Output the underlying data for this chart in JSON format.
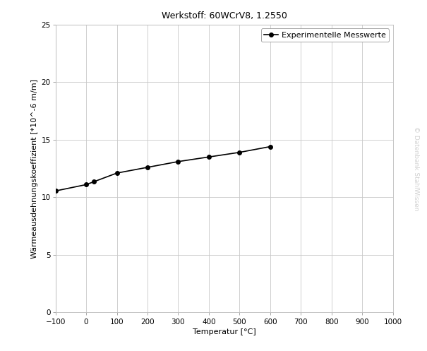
{
  "title": "Werkstoff: 60WCrV8, 1.2550",
  "xlabel": "Temperatur [°C]",
  "ylabel": "Wärmeausdehnungskoeffizient [*10^-6 m/m]",
  "legend_label": "Experimentelle Messwerte",
  "watermark": "© Datenbank StahlWissen",
  "x_data": [
    -100,
    0,
    25,
    100,
    200,
    300,
    400,
    500,
    600
  ],
  "y_data": [
    10.55,
    11.1,
    11.35,
    12.1,
    12.6,
    13.1,
    13.5,
    13.9,
    14.4
  ],
  "xlim": [
    -100,
    1000
  ],
  "ylim": [
    0,
    25
  ],
  "xticks": [
    -100,
    0,
    100,
    200,
    300,
    400,
    500,
    600,
    700,
    800,
    900,
    1000
  ],
  "yticks": [
    0,
    5,
    10,
    15,
    20,
    25
  ],
  "line_color": "#000000",
  "marker": "o",
  "marker_size": 4,
  "line_width": 1.2,
  "grid_color": "#c8c8c8",
  "bg_color": "#ffffff",
  "title_fontsize": 9,
  "label_fontsize": 8,
  "tick_fontsize": 7.5,
  "legend_fontsize": 8,
  "watermark_color": "#d0d0d0"
}
